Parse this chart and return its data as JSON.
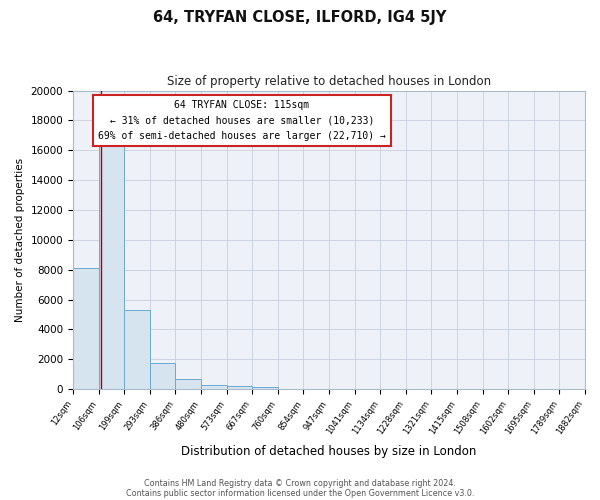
{
  "title": "64, TRYFAN CLOSE, ILFORD, IG4 5JY",
  "subtitle": "Size of property relative to detached houses in London",
  "xlabel": "Distribution of detached houses by size in London",
  "ylabel": "Number of detached properties",
  "bar_values": [
    8100,
    16600,
    5300,
    1750,
    700,
    280,
    200,
    130,
    0,
    0,
    0,
    0,
    0,
    0,
    0,
    0,
    0,
    0,
    0,
    0
  ],
  "bin_labels": [
    "12sqm",
    "106sqm",
    "199sqm",
    "293sqm",
    "386sqm",
    "480sqm",
    "573sqm",
    "667sqm",
    "760sqm",
    "854sqm",
    "947sqm",
    "1041sqm",
    "1134sqm",
    "1228sqm",
    "1321sqm",
    "1415sqm",
    "1508sqm",
    "1602sqm",
    "1695sqm",
    "1789sqm",
    "1882sqm"
  ],
  "bar_color": "#d6e4f0",
  "bar_edge_color": "#6aaad4",
  "vline_x": 1.09,
  "vline_color": "#aa0000",
  "ylim": [
    0,
    20000
  ],
  "yticks": [
    0,
    2000,
    4000,
    6000,
    8000,
    10000,
    12000,
    14000,
    16000,
    18000,
    20000
  ],
  "annotation_title": "64 TRYFAN CLOSE: 115sqm",
  "annotation_line1": "← 31% of detached houses are smaller (10,233)",
  "annotation_line2": "69% of semi-detached houses are larger (22,710) →",
  "footer1": "Contains HM Land Registry data © Crown copyright and database right 2024.",
  "footer2": "Contains public sector information licensed under the Open Government Licence v3.0.",
  "bg_color": "#ffffff",
  "plot_bg_color": "#eef2f8",
  "grid_color": "#c8d0dc",
  "spine_color": "#aabbcc"
}
